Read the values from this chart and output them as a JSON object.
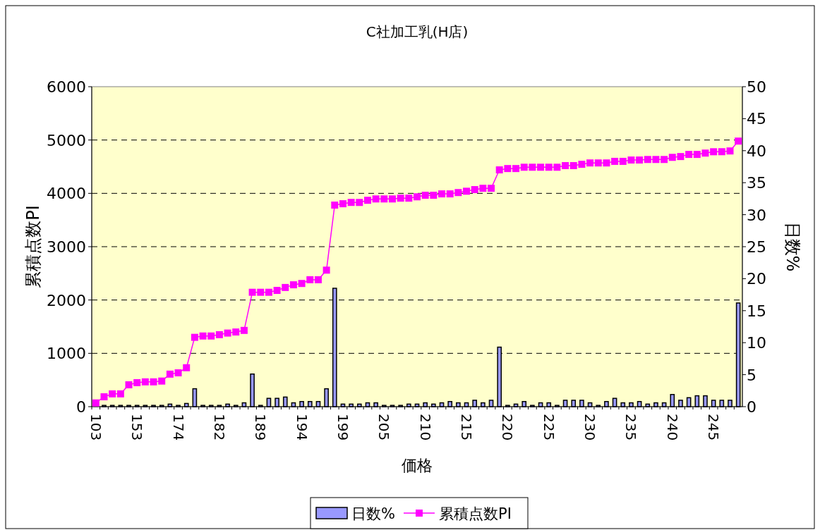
{
  "chart_data": {
    "type": "bar",
    "title": "C社加工乳(H店)",
    "xlabel": "価格",
    "ylabel": "累積点数PI",
    "y2label": "日数%",
    "categories": [
      "103",
      null,
      null,
      null,
      null,
      "153",
      null,
      null,
      null,
      null,
      "174",
      null,
      null,
      null,
      null,
      "182",
      null,
      null,
      null,
      null,
      "189",
      null,
      null,
      null,
      null,
      "194",
      null,
      null,
      null,
      null,
      "199",
      null,
      null,
      null,
      null,
      "205",
      null,
      null,
      null,
      null,
      "210",
      null,
      null,
      null,
      null,
      "215",
      null,
      null,
      null,
      null,
      "220",
      null,
      null,
      null,
      null,
      "225",
      null,
      null,
      null,
      null,
      "230",
      null,
      null,
      null,
      null,
      "235",
      null,
      null,
      null,
      null,
      "240",
      null,
      null,
      null,
      null,
      "245",
      null,
      null,
      null
    ],
    "series": [
      {
        "name": "日数%",
        "axis": "y2",
        "color": "#9999ff",
        "values": [
          null,
          0.2,
          0.2,
          0.2,
          0.2,
          0.2,
          0.2,
          0.2,
          0.2,
          0.4,
          0.2,
          0.5,
          2.8,
          0.2,
          0.2,
          0.2,
          0.4,
          0.2,
          0.6,
          5.1,
          0.2,
          1.3,
          1.3,
          1.5,
          0.6,
          0.8,
          0.8,
          0.8,
          2.8,
          18.5,
          0.4,
          0.4,
          0.4,
          0.6,
          0.6,
          0.2,
          0.2,
          0.2,
          0.4,
          0.4,
          0.6,
          0.4,
          0.6,
          0.8,
          0.6,
          0.6,
          1.0,
          0.6,
          1.0,
          9.3,
          0.2,
          0.4,
          0.8,
          0.2,
          0.6,
          0.6,
          0.2,
          1.0,
          1.0,
          1.0,
          0.6,
          0.2,
          0.8,
          1.3,
          0.6,
          0.6,
          0.8,
          0.4,
          0.6,
          0.6,
          1.9,
          1.0,
          1.4,
          1.7,
          1.7,
          1.0,
          1.0,
          1.0,
          16.2
        ]
      },
      {
        "name": "累積点数PI",
        "type": "line",
        "color": "#ff00ff",
        "marker": "square",
        "values": [
          70,
          185,
          240,
          240,
          410,
          450,
          465,
          465,
          480,
          610,
          635,
          730,
          1300,
          1325,
          1325,
          1350,
          1380,
          1400,
          1430,
          2145,
          2145,
          2145,
          2180,
          2235,
          2285,
          2310,
          2380,
          2380,
          2560,
          3780,
          3805,
          3830,
          3830,
          3870,
          3895,
          3895,
          3895,
          3910,
          3910,
          3935,
          3965,
          3965,
          3990,
          3990,
          4015,
          4040,
          4070,
          4095,
          4095,
          4440,
          4465,
          4465,
          4490,
          4490,
          4490,
          4490,
          4490,
          4520,
          4520,
          4545,
          4570,
          4570,
          4570,
          4600,
          4600,
          4625,
          4625,
          4635,
          4635,
          4635,
          4675,
          4690,
          4730,
          4730,
          4755,
          4780,
          4780,
          4795,
          4980
        ]
      }
    ],
    "ylim": [
      0,
      6000
    ],
    "yticks": [
      0,
      1000,
      2000,
      3000,
      4000,
      5000,
      6000
    ],
    "y2lim": [
      0,
      50
    ],
    "y2ticks": [
      0,
      5,
      10,
      15,
      20,
      25,
      30,
      35,
      40,
      45,
      50
    ],
    "grid": "y",
    "legend": "bottom"
  }
}
